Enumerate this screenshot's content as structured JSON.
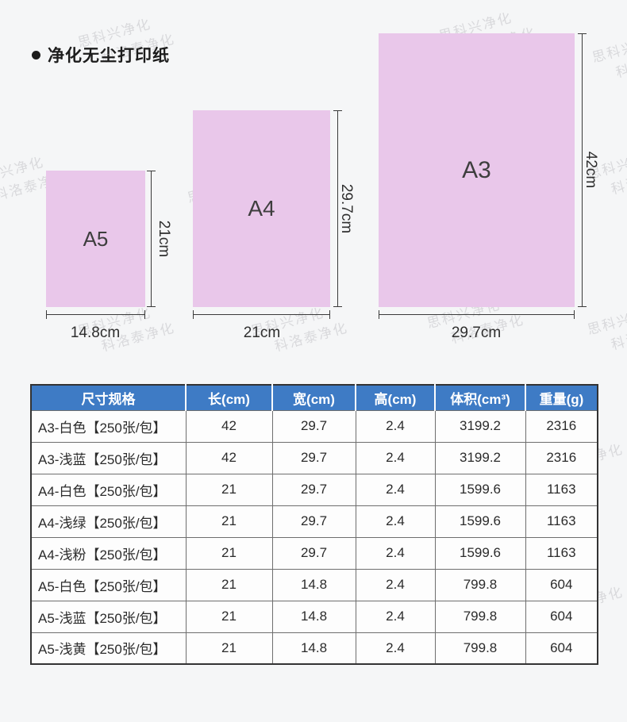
{
  "title": {
    "text": "净化无尘打印纸"
  },
  "colors": {
    "paper_fill": "#e9c7ea",
    "table_header_bg": "#3e7bc5",
    "table_header_text": "#ffffff",
    "dimension_line": "#3a3a3a",
    "page_background": "#f5f6f7"
  },
  "papers": [
    {
      "label": "A5",
      "width_label": "14.8cm",
      "height_label": "21cm"
    },
    {
      "label": "A4",
      "width_label": "21cm",
      "height_label": "29.7cm"
    },
    {
      "label": "A3",
      "width_label": "29.7cm",
      "height_label": "42cm"
    }
  ],
  "table": {
    "headers": [
      "尺寸规格",
      "长(cm)",
      "宽(cm)",
      "高(cm)",
      "体积(cm³)",
      "重量(g)"
    ],
    "rows": [
      [
        "A3-白色【250张/包】",
        "42",
        "29.7",
        "2.4",
        "3199.2",
        "2316"
      ],
      [
        "A3-浅蓝【250张/包】",
        "42",
        "29.7",
        "2.4",
        "3199.2",
        "2316"
      ],
      [
        "A4-白色【250张/包】",
        "21",
        "29.7",
        "2.4",
        "1599.6",
        "1163"
      ],
      [
        "A4-浅绿【250张/包】",
        "21",
        "29.7",
        "2.4",
        "1599.6",
        "1163"
      ],
      [
        "A4-浅粉【250张/包】",
        "21",
        "29.7",
        "2.4",
        "1599.6",
        "1163"
      ],
      [
        "A5-白色【250张/包】",
        "21",
        "14.8",
        "2.4",
        "799.8",
        "604"
      ],
      [
        "A5-浅蓝【250张/包】",
        "21",
        "14.8",
        "2.4",
        "799.8",
        "604"
      ],
      [
        "A5-浅黄【250张/包】",
        "21",
        "14.8",
        "2.4",
        "799.8",
        "604"
      ]
    ]
  },
  "watermark": {
    "line1": "思科兴净化",
    "line2": "科洛泰净化"
  }
}
